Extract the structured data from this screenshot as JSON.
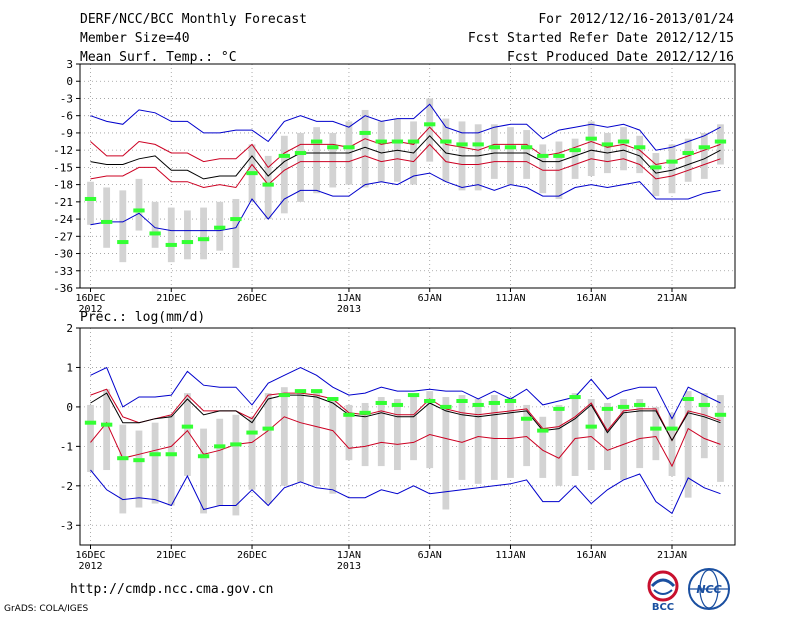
{
  "header": {
    "title": "DERF/NCC/BCC Monthly Forecast",
    "member_size": "Member Size=40",
    "variable": "Mean Surf. Temp.: °C",
    "period": "For 2012/12/16-2013/01/24",
    "started": "Fcst Started Refer Date 2012/12/15",
    "produced": "Fcst Produced Date 2012/12/16"
  },
  "footer": {
    "url": "http://cmdp.ncc.cma.gov.cn",
    "grads": "GrADS: COLA/IGES"
  },
  "logos": {
    "bcc": "BCC",
    "ncc": "NCC"
  },
  "colors": {
    "bar": "#d3d3d3",
    "median": "#33ff33",
    "mean": "#000000",
    "inner": "#cc0022",
    "outer": "#0000cc"
  },
  "chart_data": [
    {
      "type": "box_line",
      "title": "Mean Surf. Temp.: °C",
      "ylabel": "°C",
      "ylim": [
        -36,
        3
      ],
      "yticks": [
        3,
        0,
        -3,
        -6,
        -9,
        -12,
        -15,
        -18,
        -21,
        -24,
        -27,
        -30,
        -33,
        -36
      ],
      "ytick_labels": [
        "3",
        "0",
        "-3",
        "-6",
        "-9",
        "-12",
        "-15",
        "-18",
        "-21",
        "-24",
        "-27",
        "-30",
        "-33",
        "-36"
      ],
      "x": [
        1,
        2,
        3,
        4,
        5,
        6,
        7,
        8,
        9,
        10,
        11,
        12,
        13,
        14,
        15,
        16,
        17,
        18,
        19,
        20,
        21,
        22,
        23,
        24,
        25,
        26,
        27,
        28,
        29,
        30,
        31,
        32,
        33,
        34,
        35,
        36,
        37,
        38,
        39,
        40
      ],
      "xticks": [
        {
          "x": 1,
          "label": "16DEC",
          "sub": "2012"
        },
        {
          "x": 6,
          "label": "21DEC",
          "sub": ""
        },
        {
          "x": 11,
          "label": "26DEC",
          "sub": ""
        },
        {
          "x": 17,
          "label": "1JAN",
          "sub": "2013"
        },
        {
          "x": 22,
          "label": "6JAN",
          "sub": ""
        },
        {
          "x": 27,
          "label": "11JAN",
          "sub": ""
        },
        {
          "x": 32,
          "label": "16JAN",
          "sub": ""
        },
        {
          "x": 37,
          "label": "21JAN",
          "sub": ""
        }
      ],
      "series": [
        {
          "name": "outer_upper",
          "values": [
            -6,
            -7,
            -7.5,
            -5,
            -5.5,
            -7,
            -7,
            -9,
            -9,
            -8.5,
            -8.5,
            -10.5,
            -7,
            -6,
            -7,
            -7,
            -8,
            -6,
            -7,
            -6.5,
            -6.5,
            -4,
            -8,
            -9,
            -9,
            -8,
            -7.5,
            -7.5,
            -10,
            -8.5,
            -8,
            -7.5,
            -8,
            -7.5,
            -8.5,
            -12,
            -11.5,
            -10.5,
            -9.5,
            -8
          ]
        },
        {
          "name": "inner_upper",
          "values": [
            -10.5,
            -13,
            -13,
            -10.5,
            -11,
            -12.5,
            -12.5,
            -14,
            -13.5,
            -13.5,
            -11,
            -15,
            -12.5,
            -11,
            -11,
            -11,
            -11.5,
            -10,
            -11,
            -10.5,
            -11,
            -8,
            -11,
            -11.5,
            -12,
            -11,
            -11,
            -11,
            -13,
            -12.5,
            -11.5,
            -10.5,
            -11.5,
            -11,
            -12,
            -14.5,
            -14,
            -13,
            -12,
            -11
          ]
        },
        {
          "name": "mean",
          "values": [
            -14,
            -14.5,
            -14.5,
            -13.5,
            -13,
            -15.5,
            -15.5,
            -17,
            -16.5,
            -16.5,
            -13,
            -16.5,
            -14,
            -12.5,
            -12.5,
            -12.5,
            -12.5,
            -11.5,
            -12.5,
            -12,
            -12.5,
            -9.5,
            -12.5,
            -13,
            -13,
            -12.5,
            -12.5,
            -12.5,
            -14,
            -14,
            -13,
            -12,
            -12.5,
            -12,
            -13,
            -16,
            -15.5,
            -14.5,
            -13.5,
            -12
          ]
        },
        {
          "name": "inner_lower",
          "values": [
            -17,
            -16.5,
            -16.5,
            -15,
            -15,
            -17.5,
            -17.5,
            -18.5,
            -18,
            -18.5,
            -14.5,
            -18,
            -15.5,
            -14,
            -14,
            -14,
            -14,
            -13,
            -14,
            -13.5,
            -14,
            -11,
            -14,
            -14.5,
            -14.5,
            -14,
            -14,
            -14,
            -15.5,
            -15.5,
            -14.5,
            -13.5,
            -14,
            -13.5,
            -14.5,
            -17,
            -16.5,
            -15.5,
            -14.5,
            -13.5
          ]
        },
        {
          "name": "outer_lower",
          "values": [
            -25,
            -24.5,
            -24.5,
            -23,
            -25.5,
            -26,
            -26,
            -26,
            -26,
            -25.5,
            -20.5,
            -24,
            -20.5,
            -19,
            -19,
            -20,
            -20,
            -18,
            -17.5,
            -18,
            -16.5,
            -16,
            -17.5,
            -18.5,
            -18,
            -19,
            -18,
            -18.5,
            -20,
            -20,
            -18.5,
            -18,
            -18.5,
            -18,
            -17.5,
            -20.5,
            -20.5,
            -20.5,
            -19.5,
            -19
          ]
        },
        {
          "name": "median",
          "values": [
            -20.5,
            -24.5,
            -28,
            -22.5,
            -26.5,
            -28.5,
            -28,
            -27.5,
            -25.5,
            -24,
            -16,
            -18,
            -13,
            -12.5,
            -10.5,
            -11.5,
            -11.5,
            -9,
            -10.5,
            -10.5,
            -10.5,
            -7.5,
            -10.5,
            -11,
            -11,
            -11.5,
            -11.5,
            -11.5,
            -13,
            -13,
            -12,
            -10,
            -11,
            -10.5,
            -11.5,
            -15,
            -14,
            -12.5,
            -11.5,
            -10.5
          ]
        }
      ],
      "boxes_low": [
        -25,
        -29,
        -31.5,
        -26,
        -29,
        -31.5,
        -31,
        -31,
        -29.5,
        -32.5,
        -21,
        -24,
        -23,
        -21,
        -19.5,
        -18.5,
        -18,
        -18.5,
        -17.5,
        -17.5,
        -18,
        -14,
        -17.5,
        -19,
        -19,
        -17,
        -18,
        -17,
        -19.5,
        -20.5,
        -17,
        -16.5,
        -16,
        -15.5,
        -16,
        -20,
        -19.5,
        -17.5,
        -17,
        -14.5
      ],
      "boxes_high": [
        -17.5,
        -18.5,
        -19,
        -17,
        -21,
        -22,
        -22.5,
        -22,
        -21,
        -20.5,
        -11,
        -13,
        -9.5,
        -9,
        -8,
        -9,
        -7,
        -5,
        -7,
        -6.5,
        -7,
        -3,
        -6.5,
        -7,
        -7.5,
        -7.5,
        -8,
        -8.5,
        -11,
        -10.5,
        -10,
        -7,
        -9,
        -8,
        -9.5,
        -12.5,
        -11,
        -10,
        -9,
        -7.5
      ]
    },
    {
      "type": "box_line",
      "title": "Prec.: log(mm/d)",
      "ylabel": "log(mm/d)",
      "ylim": [
        -3.5,
        2
      ],
      "yticks": [
        2,
        1,
        0,
        -1,
        -2,
        -3
      ],
      "ytick_labels": [
        "2",
        "1",
        "0",
        "-1",
        "-2",
        "-3"
      ],
      "x": [
        1,
        2,
        3,
        4,
        5,
        6,
        7,
        8,
        9,
        10,
        11,
        12,
        13,
        14,
        15,
        16,
        17,
        18,
        19,
        20,
        21,
        22,
        23,
        24,
        25,
        26,
        27,
        28,
        29,
        30,
        31,
        32,
        33,
        34,
        35,
        36,
        37,
        38,
        39,
        40
      ],
      "xticks": [
        {
          "x": 1,
          "label": "16DEC",
          "sub": "2012"
        },
        {
          "x": 6,
          "label": "21DEC",
          "sub": ""
        },
        {
          "x": 11,
          "label": "26DEC",
          "sub": ""
        },
        {
          "x": 17,
          "label": "1JAN",
          "sub": "2013"
        },
        {
          "x": 22,
          "label": "6JAN",
          "sub": ""
        },
        {
          "x": 27,
          "label": "11JAN",
          "sub": ""
        },
        {
          "x": 32,
          "label": "16JAN",
          "sub": ""
        },
        {
          "x": 37,
          "label": "21JAN",
          "sub": ""
        }
      ],
      "series": [
        {
          "name": "outer_upper",
          "values": [
            0.8,
            1.0,
            0.0,
            0.25,
            0.25,
            0.3,
            0.9,
            0.55,
            0.5,
            0.5,
            0.05,
            0.6,
            0.8,
            1.0,
            0.8,
            0.5,
            0.3,
            0.35,
            0.5,
            0.4,
            0.4,
            0.45,
            0.4,
            0.4,
            0.2,
            0.4,
            0.2,
            0.45,
            0.05,
            0.15,
            0.25,
            0.7,
            0.2,
            0.4,
            0.5,
            0.5,
            -0.3,
            0.5,
            0.3,
            0.1
          ]
        },
        {
          "name": "inner_upper",
          "values": [
            0.3,
            0.45,
            -0.25,
            -0.4,
            -0.3,
            -0.2,
            0.3,
            -0.1,
            -0.1,
            -0.1,
            -0.3,
            0.3,
            0.35,
            0.35,
            0.3,
            0.2,
            -0.15,
            -0.2,
            -0.1,
            -0.2,
            -0.2,
            0.2,
            -0.05,
            -0.15,
            -0.2,
            -0.15,
            -0.1,
            -0.05,
            -0.55,
            -0.5,
            -0.25,
            0.1,
            -0.6,
            -0.1,
            -0.05,
            -0.05,
            -0.85,
            -0.1,
            -0.2,
            -0.35
          ]
        },
        {
          "name": "mean",
          "values": [
            0.1,
            0.35,
            -0.4,
            -0.4,
            -0.3,
            -0.25,
            0.2,
            -0.2,
            -0.1,
            -0.1,
            -0.4,
            0.2,
            0.3,
            0.3,
            0.25,
            0.1,
            -0.2,
            -0.25,
            -0.15,
            -0.25,
            -0.25,
            0.1,
            -0.1,
            -0.2,
            -0.25,
            -0.2,
            -0.15,
            -0.1,
            -0.6,
            -0.55,
            -0.3,
            0.05,
            -0.65,
            -0.15,
            -0.1,
            -0.1,
            -0.85,
            -0.15,
            -0.25,
            -0.4
          ]
        },
        {
          "name": "inner_lower",
          "values": [
            -0.9,
            -0.4,
            -1.3,
            -1.2,
            -1.1,
            -1.0,
            -0.6,
            -1.2,
            -1.1,
            -0.95,
            -0.9,
            -0.6,
            -0.25,
            -0.4,
            -0.5,
            -0.6,
            -1.05,
            -1.0,
            -0.9,
            -0.95,
            -0.9,
            -0.7,
            -0.8,
            -0.9,
            -0.75,
            -0.8,
            -0.8,
            -0.75,
            -1.1,
            -1.3,
            -0.8,
            -0.75,
            -1.1,
            -0.95,
            -0.8,
            -0.75,
            -1.5,
            -0.55,
            -0.8,
            -0.95
          ]
        },
        {
          "name": "outer_lower",
          "values": [
            -1.6,
            -2.1,
            -2.35,
            -2.3,
            -2.35,
            -2.5,
            -1.75,
            -2.6,
            -2.5,
            -2.5,
            -2.1,
            -2.5,
            -2.05,
            -1.9,
            -2.05,
            -2.1,
            -2.3,
            -2.3,
            -2.1,
            -2.2,
            -2.0,
            -2.2,
            -2.15,
            -2.1,
            -2.05,
            -2.0,
            -1.95,
            -1.85,
            -2.4,
            -2.4,
            -2.0,
            -2.45,
            -2.1,
            -1.85,
            -1.7,
            -2.4,
            -2.7,
            -1.8,
            -2.05,
            -2.2
          ]
        },
        {
          "name": "median",
          "values": [
            -0.4,
            -0.45,
            -1.3,
            -1.35,
            -1.2,
            -1.2,
            -0.5,
            -1.25,
            -1.0,
            -0.95,
            -0.65,
            -0.55,
            0.3,
            0.4,
            0.4,
            0.2,
            -0.2,
            -0.15,
            0.1,
            0.05,
            0.3,
            0.15,
            0.0,
            0.15,
            0.05,
            0.1,
            0.15,
            -0.3,
            -0.6,
            -0.05,
            0.25,
            -0.5,
            -0.05,
            0.0,
            0.05,
            -0.55,
            -0.55,
            0.2,
            0.05,
            -0.2
          ]
        }
      ],
      "boxes_low": [
        -1.65,
        -1.6,
        -2.7,
        -2.55,
        -2.45,
        -2.5,
        -1.75,
        -2.7,
        -2.5,
        -2.75,
        -2.1,
        -2.45,
        -2.0,
        -1.9,
        -2.0,
        -2.2,
        -1.35,
        -1.5,
        -1.5,
        -1.6,
        -1.35,
        -1.55,
        -2.6,
        -1.85,
        -1.95,
        -1.85,
        -1.8,
        -1.5,
        -1.8,
        -2.0,
        -1.75,
        -1.6,
        -1.6,
        -1.85,
        -1.55,
        -1.35,
        -1.75,
        -2.3,
        -1.3,
        -1.9
      ],
      "boxes_high": [
        0.05,
        0.45,
        -0.45,
        -0.6,
        -0.4,
        -0.2,
        0.35,
        -0.55,
        -0.3,
        -0.2,
        -0.25,
        0.35,
        0.5,
        0.4,
        0.4,
        0.2,
        0.05,
        0.1,
        0.25,
        0.2,
        0.3,
        0.4,
        0.25,
        0.3,
        0.2,
        0.3,
        0.25,
        0.05,
        -0.25,
        0.05,
        0.35,
        0.2,
        0.1,
        0.2,
        0.2,
        0.0,
        -0.15,
        0.4,
        0.35,
        0.3
      ]
    }
  ]
}
